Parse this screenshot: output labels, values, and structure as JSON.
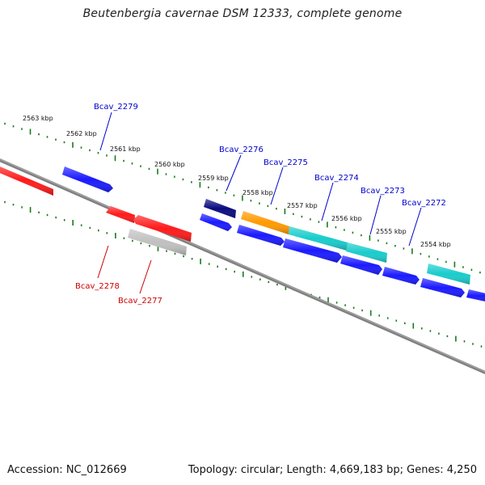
{
  "title": "Beutenbergia cavernae DSM 12333, complete genome",
  "footer": {
    "accession": "Accession: NC_012669",
    "summary": "Topology: circular; Length: 4,669,183 bp; Genes: 4,250"
  },
  "colors": {
    "backbone": "#808080",
    "tick": "#1a7a1a",
    "forward_label": "#0000cc",
    "reverse_label": "#cc0000"
  },
  "scale_labels": [
    "2563 kbp",
    "2562 kbp",
    "2561 kbp",
    "2560 kbp",
    "2559 kbp",
    "2558 kbp",
    "2557 kbp",
    "2556 kbp",
    "2555 kbp",
    "2554 kbp"
  ],
  "genes": [
    {
      "name": "Bcav_2279",
      "strand": "forward",
      "color": "#1a1aff"
    },
    {
      "name": "Bcav_2276",
      "strand": "forward",
      "color": "#0a0a80"
    },
    {
      "name": "Bcav_2275",
      "strand": "forward",
      "color": "#ff9900"
    },
    {
      "name": "Bcav_2274",
      "strand": "forward",
      "color": "#19cccc"
    },
    {
      "name": "Bcav_2273",
      "strand": "forward",
      "color": "#19cccc"
    },
    {
      "name": "Bcav_2272",
      "strand": "forward",
      "color": "#19cccc"
    },
    {
      "name": "Bcav_2278",
      "strand": "reverse",
      "color": "#ff1a1a"
    },
    {
      "name": "Bcav_2277",
      "strand": "reverse",
      "color": "#c0c0c0"
    }
  ]
}
